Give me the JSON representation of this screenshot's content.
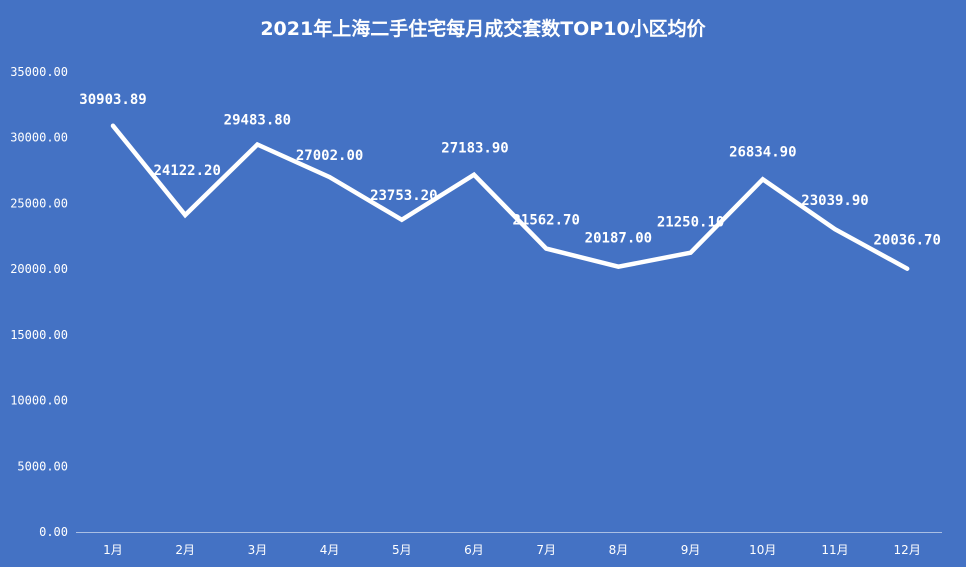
{
  "chart_data": {
    "type": "line",
    "title": "2021年上海二手住宅每月成交套数TOP10小区均价",
    "categories": [
      "1月",
      "2月",
      "3月",
      "4月",
      "5月",
      "6月",
      "7月",
      "8月",
      "9月",
      "10月",
      "11月",
      "12月"
    ],
    "values": [
      30903.89,
      24122.2,
      29483.8,
      27002.0,
      23753.2,
      27183.9,
      21562.7,
      20187.0,
      21250.1,
      26834.9,
      23039.9,
      20036.7
    ],
    "value_labels": [
      "30903.89",
      "24122.20",
      "29483.80",
      "27002.00",
      "23753.20",
      "27183.90",
      "21562.70",
      "20187.00",
      "21250.10",
      "26834.90",
      "23039.90",
      "20036.70"
    ],
    "ylim": [
      0,
      35000
    ],
    "yticks": [
      0,
      5000,
      10000,
      15000,
      20000,
      25000,
      30000,
      35000
    ],
    "ytick_labels": [
      "0.00",
      "5000.00",
      "10000.00",
      "15000.00",
      "20000.00",
      "25000.00",
      "30000.00",
      "35000.00"
    ],
    "xlabel": "",
    "ylabel": "",
    "grid": false,
    "drop_lines": true,
    "legend": "none",
    "colors": {
      "background": "#4472c4",
      "line": "#ffffff",
      "text": "#ffffff"
    }
  }
}
